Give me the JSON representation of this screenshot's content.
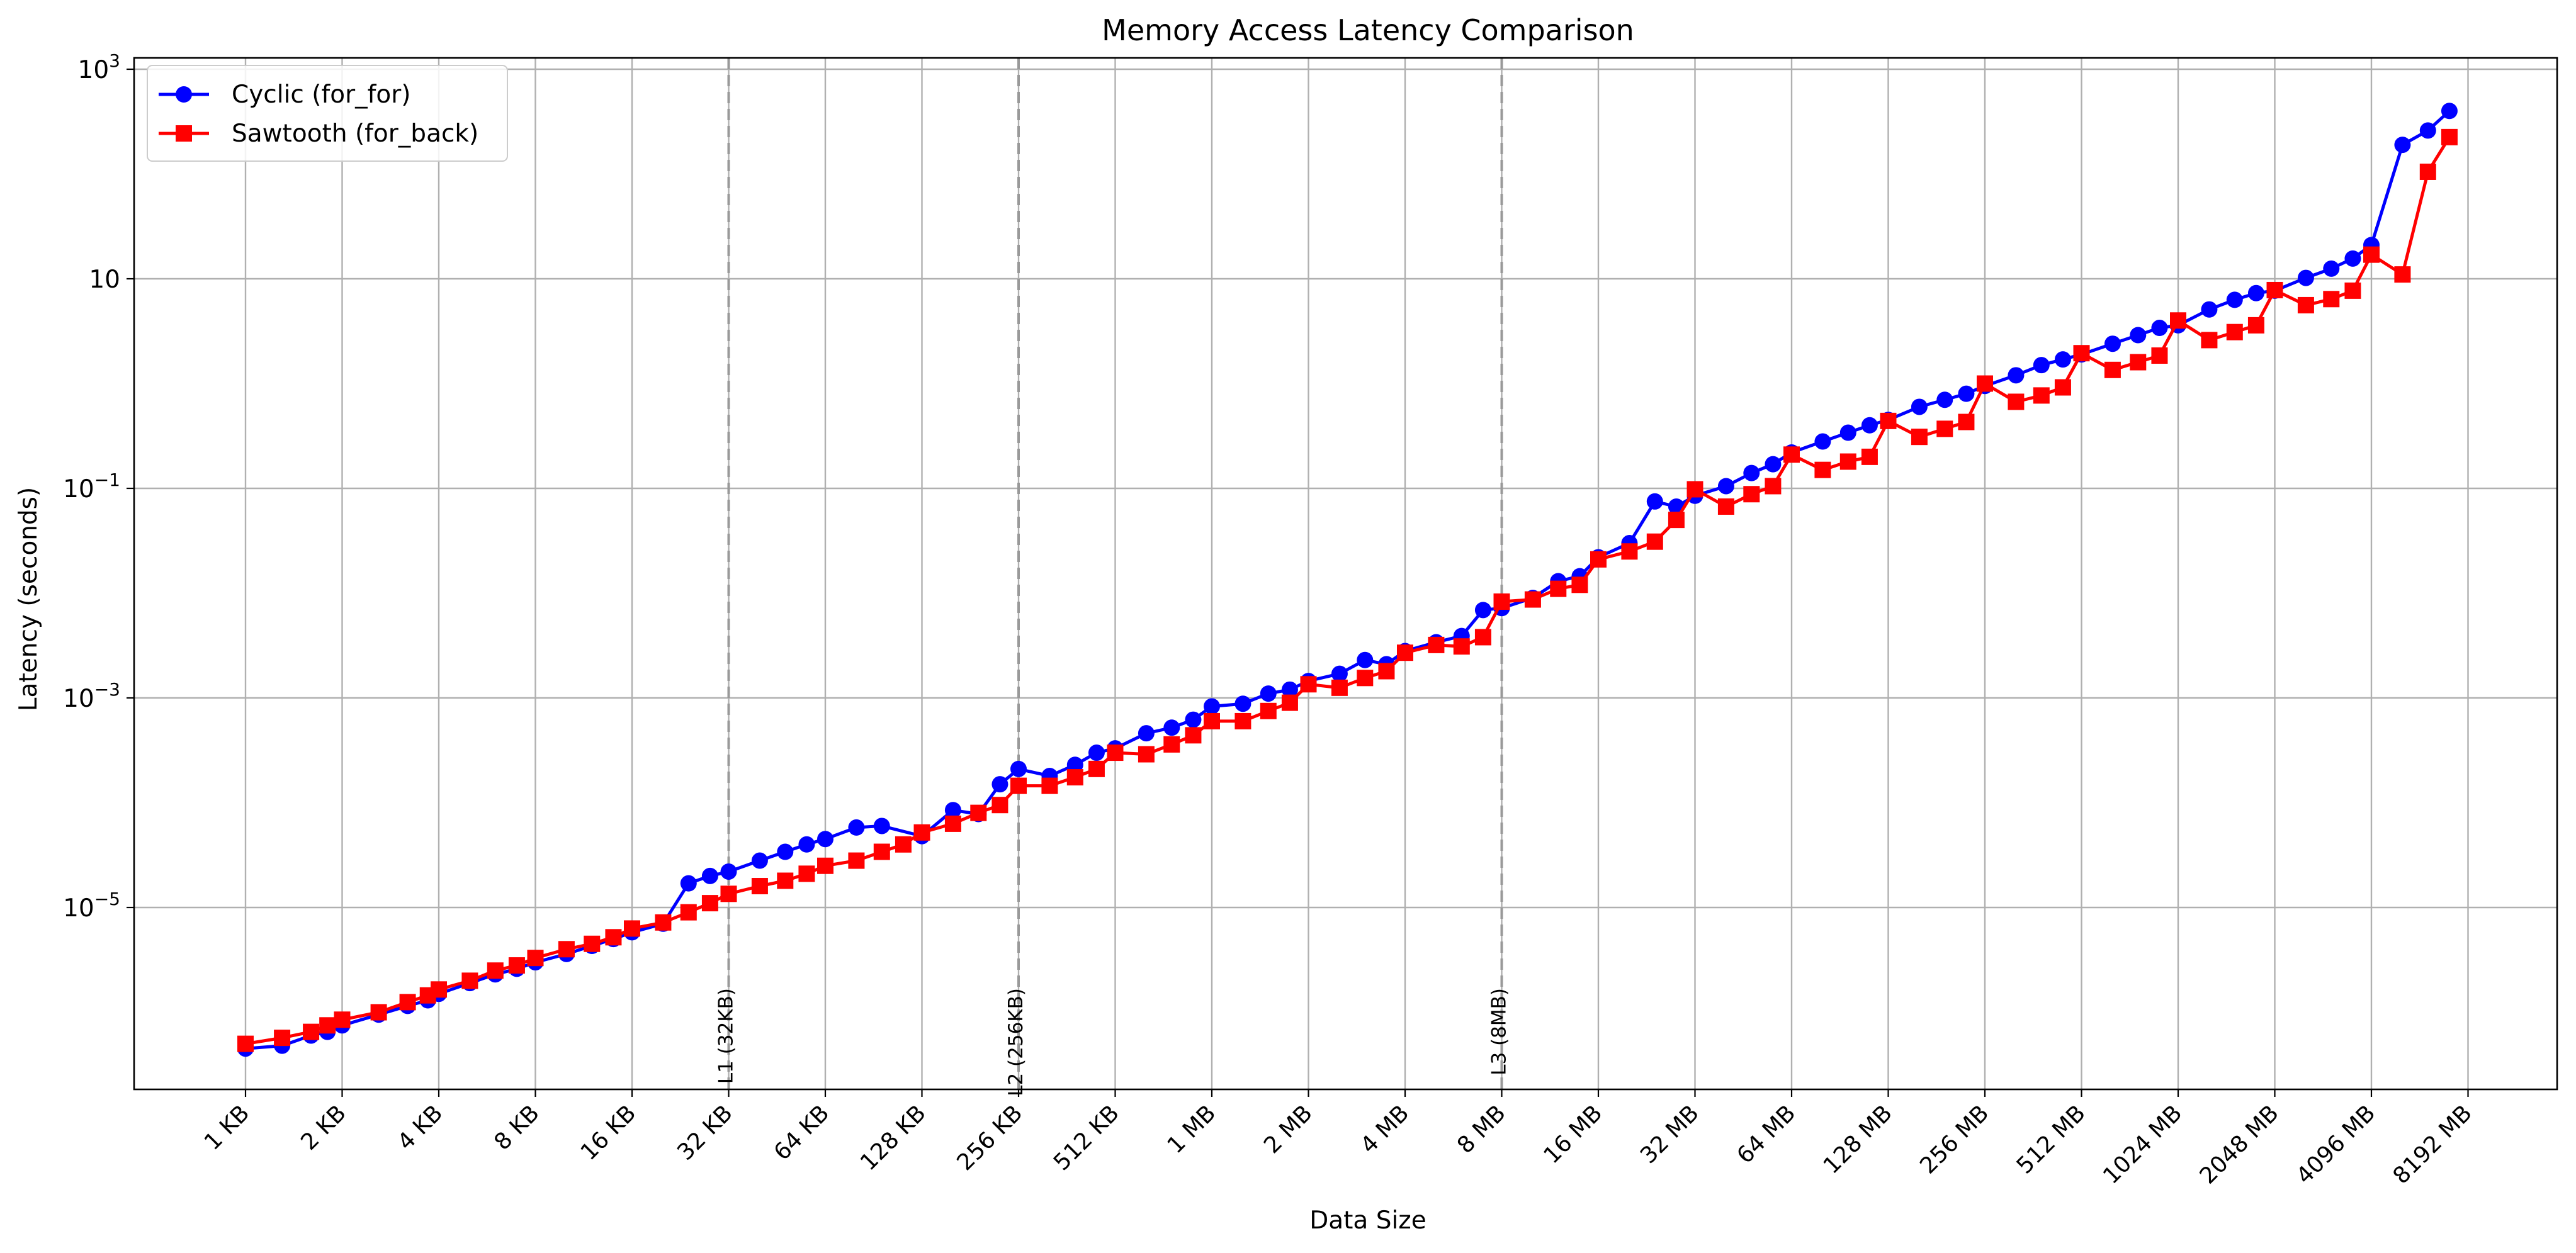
{
  "chart_data": {
    "type": "line",
    "title": "Memory Access Latency Comparison",
    "xlabel": "Data Size",
    "ylabel": "Latency (seconds)",
    "y_scale": "log",
    "ylim_exponents": [
      -7,
      3
    ],
    "y_ticks": [
      {
        "exp": 3,
        "base": "10",
        "sup": "3"
      },
      {
        "exp": 1,
        "base": "10",
        "sup": ""
      },
      {
        "exp": -1,
        "base": "10",
        "sup": "−1"
      },
      {
        "exp": -3,
        "base": "10",
        "sup": "−3"
      },
      {
        "exp": -5,
        "base": "10",
        "sup": "−5"
      }
    ],
    "x_tick_labels": [
      "1 KB",
      "2 KB",
      "4 KB",
      "8 KB",
      "16 KB",
      "32 KB",
      "64 KB",
      "128 KB",
      "256 KB",
      "512 KB",
      "1 MB",
      "2 MB",
      "4 MB",
      "8 MB",
      "16 MB",
      "32 MB",
      "64 MB",
      "128 MB",
      "256 MB",
      "512 MB",
      "1024 MB",
      "2048 MB",
      "4096 MB",
      "8192 MB"
    ],
    "grid": true,
    "legend_position": "top-left",
    "cache_lines": [
      {
        "label": "L1 (32KB)",
        "size_kb": 32
      },
      {
        "label": "L2 (256KB)",
        "size_kb": 256
      },
      {
        "label": "L3 (8MB)",
        "size_kb": 8192
      }
    ],
    "series": [
      {
        "name": "Cyclic (for_for)",
        "color": "#0000ff",
        "marker": "circle",
        "points": [
          [
            1,
            4.5e-07
          ],
          [
            1.3,
            4.8e-07
          ],
          [
            1.6,
            6e-07
          ],
          [
            1.8,
            6.5e-07
          ],
          [
            2,
            7.5e-07
          ],
          [
            2.6,
            9.5e-07
          ],
          [
            3.2,
            1.15e-06
          ],
          [
            3.7,
            1.3e-06
          ],
          [
            4,
            1.5e-06
          ],
          [
            5,
            1.9e-06
          ],
          [
            6,
            2.3e-06
          ],
          [
            7,
            2.6e-06
          ],
          [
            8,
            3e-06
          ],
          [
            10,
            3.6e-06
          ],
          [
            12,
            4.3e-06
          ],
          [
            14,
            5e-06
          ],
          [
            16,
            5.8e-06
          ],
          [
            20,
            7e-06
          ],
          [
            24,
            1.7e-05
          ],
          [
            28,
            2e-05
          ],
          [
            32,
            2.2e-05
          ],
          [
            40,
            2.8e-05
          ],
          [
            48,
            3.4e-05
          ],
          [
            56,
            4e-05
          ],
          [
            64,
            4.5e-05
          ],
          [
            80,
            5.8e-05
          ],
          [
            96,
            6e-05
          ],
          [
            128,
            4.8e-05
          ],
          [
            160,
            8.5e-05
          ],
          [
            192,
            7.8e-05
          ],
          [
            224,
            0.00015
          ],
          [
            256,
            0.00021
          ],
          [
            320,
            0.00018
          ],
          [
            384,
            0.00023
          ],
          [
            448,
            0.0003
          ],
          [
            512,
            0.00033
          ],
          [
            640,
            0.00046
          ],
          [
            768,
            0.00052
          ],
          [
            896,
            0.00062
          ],
          [
            1024,
            0.00083
          ],
          [
            1280,
            0.00088
          ],
          [
            1536,
            0.0011
          ],
          [
            1792,
            0.0012
          ],
          [
            2048,
            0.00145
          ],
          [
            2560,
            0.0017
          ],
          [
            3072,
            0.0023
          ],
          [
            3584,
            0.0021
          ],
          [
            4096,
            0.0028
          ],
          [
            5120,
            0.0034
          ],
          [
            6144,
            0.0039
          ],
          [
            7168,
            0.0069
          ],
          [
            8192,
            0.0072
          ],
          [
            10240,
            0.009
          ],
          [
            12288,
            0.013
          ],
          [
            14336,
            0.0145
          ],
          [
            16384,
            0.022
          ],
          [
            20480,
            0.03
          ],
          [
            24576,
            0.075
          ],
          [
            28672,
            0.067
          ],
          [
            32768,
            0.085
          ],
          [
            40960,
            0.105
          ],
          [
            49152,
            0.14
          ],
          [
            57344,
            0.17
          ],
          [
            65536,
            0.22
          ],
          [
            81920,
            0.28
          ],
          [
            98304,
            0.34
          ],
          [
            114688,
            0.4
          ],
          [
            131072,
            0.45
          ],
          [
            163840,
            0.6
          ],
          [
            196608,
            0.7
          ],
          [
            229376,
            0.8
          ],
          [
            262144,
            0.95
          ],
          [
            327680,
            1.2
          ],
          [
            393216,
            1.5
          ],
          [
            458752,
            1.7
          ],
          [
            524288,
            1.9
          ],
          [
            655360,
            2.4
          ],
          [
            786432,
            2.9
          ],
          [
            917504,
            3.4
          ],
          [
            1048576,
            3.6
          ],
          [
            1310720,
            5.1
          ],
          [
            1572864,
            6.3
          ],
          [
            1835008,
            7.3
          ],
          [
            2097152,
            7.7
          ],
          [
            2621440,
            10.2
          ],
          [
            3145728,
            12.5
          ],
          [
            3670016,
            15.6
          ],
          [
            4194304,
            21
          ],
          [
            5242880,
            190
          ],
          [
            6291456,
            260
          ],
          [
            7340032,
            400
          ]
        ]
      },
      {
        "name": "Sawtooth (for_back)",
        "color": "#ff0000",
        "marker": "square",
        "points": [
          [
            1,
            5e-07
          ],
          [
            1.3,
            5.7e-07
          ],
          [
            1.6,
            6.5e-07
          ],
          [
            1.8,
            7.5e-07
          ],
          [
            2,
            8.5e-07
          ],
          [
            2.6,
            1e-06
          ],
          [
            3.2,
            1.25e-06
          ],
          [
            3.7,
            1.45e-06
          ],
          [
            4,
            1.65e-06
          ],
          [
            5,
            2e-06
          ],
          [
            6,
            2.5e-06
          ],
          [
            7,
            2.8e-06
          ],
          [
            8,
            3.3e-06
          ],
          [
            10,
            4e-06
          ],
          [
            12,
            4.5e-06
          ],
          [
            14,
            5.2e-06
          ],
          [
            16,
            6.3e-06
          ],
          [
            20,
            7.2e-06
          ],
          [
            24,
            9e-06
          ],
          [
            28,
            1.1e-05
          ],
          [
            32,
            1.35e-05
          ],
          [
            40,
            1.6e-05
          ],
          [
            48,
            1.8e-05
          ],
          [
            56,
            2.1e-05
          ],
          [
            64,
            2.5e-05
          ],
          [
            80,
            2.8e-05
          ],
          [
            96,
            3.4e-05
          ],
          [
            112,
            4e-05
          ],
          [
            128,
            5.2e-05
          ],
          [
            160,
            6.3e-05
          ],
          [
            192,
            8e-05
          ],
          [
            224,
            9.5e-05
          ],
          [
            256,
            0.000145
          ],
          [
            320,
            0.000145
          ],
          [
            384,
            0.000175
          ],
          [
            448,
            0.00021
          ],
          [
            512,
            0.0003
          ],
          [
            640,
            0.00029
          ],
          [
            768,
            0.00036
          ],
          [
            896,
            0.00044
          ],
          [
            1024,
            0.0006
          ],
          [
            1280,
            0.0006
          ],
          [
            1536,
            0.00075
          ],
          [
            1792,
            0.0009
          ],
          [
            2048,
            0.00135
          ],
          [
            2560,
            0.00125
          ],
          [
            3072,
            0.00155
          ],
          [
            3584,
            0.0018
          ],
          [
            4096,
            0.0027
          ],
          [
            5120,
            0.0032
          ],
          [
            6144,
            0.0031
          ],
          [
            7168,
            0.0038
          ],
          [
            8192,
            0.0083
          ],
          [
            10240,
            0.0087
          ],
          [
            12288,
            0.011
          ],
          [
            14336,
            0.012
          ],
          [
            16384,
            0.021
          ],
          [
            20480,
            0.025
          ],
          [
            24576,
            0.031
          ],
          [
            28672,
            0.05
          ],
          [
            32768,
            0.098
          ],
          [
            40960,
            0.067
          ],
          [
            49152,
            0.088
          ],
          [
            57344,
            0.105
          ],
          [
            65536,
            0.21
          ],
          [
            81920,
            0.15
          ],
          [
            98304,
            0.18
          ],
          [
            114688,
            0.2
          ],
          [
            131072,
            0.44
          ],
          [
            163840,
            0.31
          ],
          [
            196608,
            0.37
          ],
          [
            229376,
            0.43
          ],
          [
            262144,
            1.0
          ],
          [
            327680,
            0.67
          ],
          [
            393216,
            0.77
          ],
          [
            458752,
            0.92
          ],
          [
            524288,
            1.95
          ],
          [
            655360,
            1.35
          ],
          [
            786432,
            1.6
          ],
          [
            917504,
            1.85
          ],
          [
            1048576,
            4.0
          ],
          [
            1310720,
            2.6
          ],
          [
            1572864,
            3.1
          ],
          [
            1835008,
            3.6
          ],
          [
            2097152,
            7.8
          ],
          [
            2621440,
            5.6
          ],
          [
            3145728,
            6.4
          ],
          [
            3670016,
            7.7
          ],
          [
            4194304,
            17
          ],
          [
            5242880,
            11
          ],
          [
            6291456,
            105
          ],
          [
            7340032,
            225
          ]
        ]
      }
    ]
  }
}
